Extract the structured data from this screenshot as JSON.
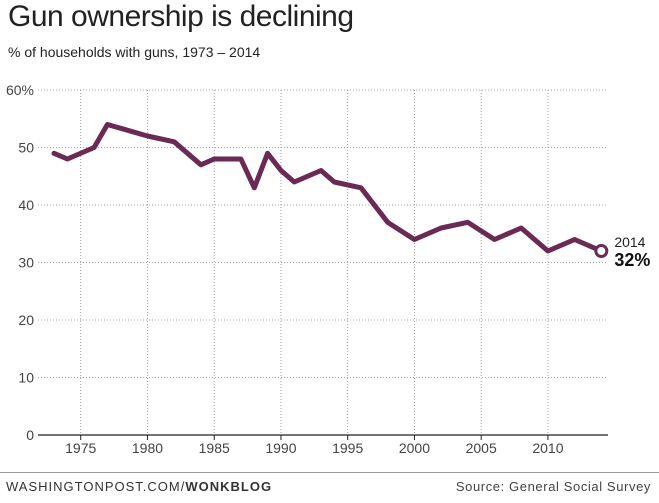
{
  "chart_data": {
    "type": "line",
    "title": "Gun ownership is declining",
    "subtitle": "% of households with guns, 1973 – 2014",
    "xlabel": "",
    "ylabel": "",
    "xlim": [
      1971.8,
      2014.5
    ],
    "ylim": [
      0,
      60
    ],
    "y_ticks": [
      {
        "value": 0,
        "label": "0"
      },
      {
        "value": 10,
        "label": "10"
      },
      {
        "value": 20,
        "label": "20"
      },
      {
        "value": 30,
        "label": "30"
      },
      {
        "value": 40,
        "label": "40"
      },
      {
        "value": 50,
        "label": "50"
      },
      {
        "value": 60,
        "label": "60%"
      }
    ],
    "x_ticks": [
      {
        "value": 1975,
        "label": "1975"
      },
      {
        "value": 1980,
        "label": "1980"
      },
      {
        "value": 1985,
        "label": "1985"
      },
      {
        "value": 1990,
        "label": "1990"
      },
      {
        "value": 1995,
        "label": "1995"
      },
      {
        "value": 2000,
        "label": "2000"
      },
      {
        "value": 2005,
        "label": "2005"
      },
      {
        "value": 2010,
        "label": "2010"
      }
    ],
    "grid": true,
    "series": [
      {
        "color": "#6b2a55",
        "points": [
          {
            "x": 1973,
            "y": 49
          },
          {
            "x": 1974,
            "y": 48
          },
          {
            "x": 1976,
            "y": 50
          },
          {
            "x": 1977,
            "y": 54
          },
          {
            "x": 1980,
            "y": 52
          },
          {
            "x": 1982,
            "y": 51
          },
          {
            "x": 1984,
            "y": 47
          },
          {
            "x": 1985,
            "y": 48
          },
          {
            "x": 1987,
            "y": 48
          },
          {
            "x": 1988,
            "y": 43
          },
          {
            "x": 1989,
            "y": 49
          },
          {
            "x": 1990,
            "y": 46
          },
          {
            "x": 1991,
            "y": 44
          },
          {
            "x": 1993,
            "y": 46
          },
          {
            "x": 1994,
            "y": 44
          },
          {
            "x": 1996,
            "y": 43
          },
          {
            "x": 1998,
            "y": 37
          },
          {
            "x": 2000,
            "y": 34
          },
          {
            "x": 2002,
            "y": 36
          },
          {
            "x": 2004,
            "y": 37
          },
          {
            "x": 2006,
            "y": 34
          },
          {
            "x": 2008,
            "y": 36
          },
          {
            "x": 2010,
            "y": 32
          },
          {
            "x": 2012,
            "y": 34
          },
          {
            "x": 2014,
            "y": 32
          }
        ]
      }
    ],
    "annotation": {
      "x": 2014,
      "y": 32,
      "year_label": "2014",
      "value_label": "32%"
    }
  },
  "footer": {
    "source_left_prefix": "WASHINGTONPOST.COM/",
    "source_left_strong": "WONKBLOG",
    "source_right": "Source: General Social Survey"
  }
}
